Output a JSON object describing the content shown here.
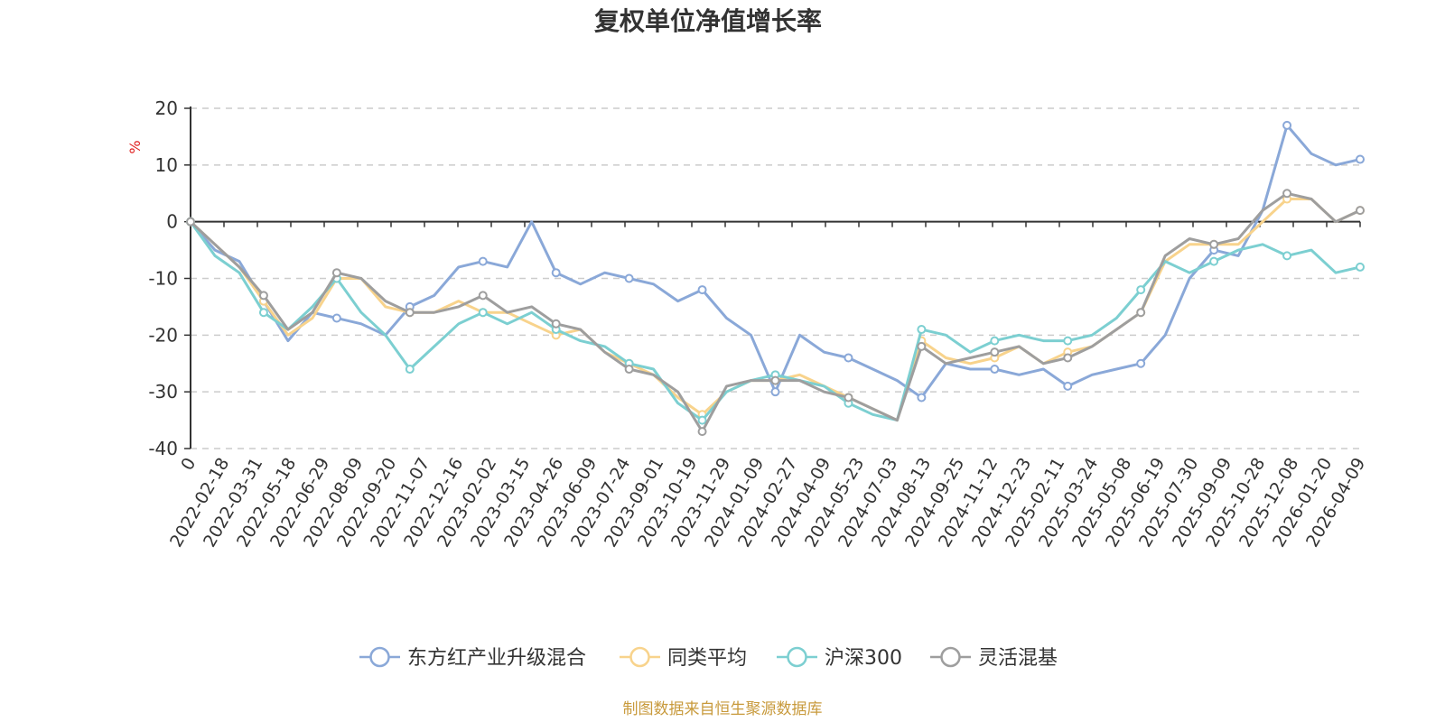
{
  "chart_data": {
    "type": "line",
    "title": "复权单位净值增长率",
    "ylabel": "%",
    "ylim": [
      -40,
      20
    ],
    "yticks": [
      20,
      10,
      0,
      -10,
      -20,
      -30,
      -40
    ],
    "x_tick_labels": [
      "0",
      "2022-02-18",
      "2022-03-31",
      "2022-05-18",
      "2022-06-29",
      "2022-08-09",
      "2022-09-20",
      "2022-11-07",
      "2022-12-16",
      "2023-02-02",
      "2023-03-15",
      "2023-04-26",
      "2023-06-09",
      "2023-07-24",
      "2023-09-01",
      "2023-10-19",
      "2023-11-29",
      "2024-01-09",
      "2024-02-27",
      "2024-04-09",
      "2024-05-23",
      "2024-07-03",
      "2024-08-13",
      "2024-09-25",
      "2024-11-12",
      "2024-12-23",
      "2025-02-11",
      "2025-03-24",
      "2025-05-08",
      "2025-06-19",
      "2025-07-30",
      "2025-09-09",
      "2025-10-28",
      "2025-12-08",
      "2026-01-20",
      "2026-04-09"
    ],
    "grid": true,
    "legend_position": "bottom",
    "source_note": "制图数据来自恒生聚源数据库",
    "series": [
      {
        "name": "东方红产业升级混合",
        "color": "#8aa8d8",
        "values": [
          0,
          -5,
          -7,
          -14,
          -21,
          -16,
          -17,
          -18,
          -20,
          -15,
          -13,
          -8,
          -7,
          -8,
          0,
          -9,
          -11,
          -9,
          -10,
          -11,
          -14,
          -12,
          -17,
          -20,
          -30,
          -20,
          -23,
          -24,
          -26,
          -28,
          -31,
          -25,
          -26,
          -26,
          -27,
          -26,
          -29,
          -27,
          -26,
          -25,
          -20,
          -10,
          -5,
          -6,
          2,
          17,
          12,
          10,
          11
        ]
      },
      {
        "name": "同类平均",
        "color": "#f8d38c",
        "values": [
          0,
          -4,
          -8,
          -14,
          -20,
          -17,
          -10,
          -10,
          -15,
          -16,
          -16,
          -14,
          -16,
          -16,
          -18,
          -20,
          -19,
          -23,
          -25,
          -27,
          -31,
          -34,
          -30,
          -28,
          -28,
          -27,
          -29,
          -31,
          -33,
          -35,
          -21,
          -24,
          -25,
          -24,
          -22,
          -25,
          -23,
          -22,
          -19,
          -16,
          -7,
          -4,
          -4,
          -4,
          0,
          4,
          4,
          0,
          2
        ]
      },
      {
        "name": "沪深300",
        "color": "#7ccfd1",
        "values": [
          0,
          -6,
          -9,
          -16,
          -19,
          -15,
          -10,
          -16,
          -20,
          -26,
          -22,
          -18,
          -16,
          -18,
          -16,
          -19,
          -21,
          -22,
          -25,
          -26,
          -32,
          -35,
          -30,
          -28,
          -27,
          -28,
          -29,
          -32,
          -34,
          -35,
          -19,
          -20,
          -23,
          -21,
          -20,
          -21,
          -21,
          -20,
          -17,
          -12,
          -7,
          -9,
          -7,
          -5,
          -4,
          -6,
          -5,
          -9,
          -8
        ]
      },
      {
        "name": "灵活混基",
        "color": "#9e9e9e",
        "values": [
          0,
          -4,
          -8,
          -13,
          -19,
          -16,
          -9,
          -10,
          -14,
          -16,
          -16,
          -15,
          -13,
          -16,
          -15,
          -18,
          -19,
          -23,
          -26,
          -27,
          -30,
          -37,
          -29,
          -28,
          -28,
          -28,
          -30,
          -31,
          -33,
          -35,
          -22,
          -25,
          -24,
          -23,
          -22,
          -25,
          -24,
          -22,
          -19,
          -16,
          -6,
          -3,
          -4,
          -3,
          2,
          5,
          4,
          0,
          2
        ]
      }
    ]
  }
}
